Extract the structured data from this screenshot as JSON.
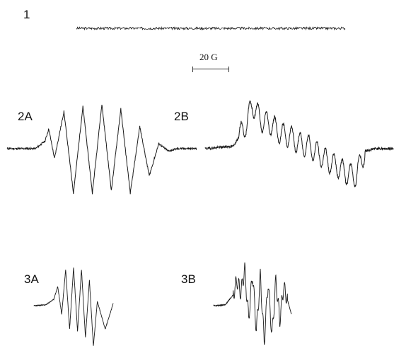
{
  "figure": {
    "scale_bar_label": "20 G"
  },
  "chart_data": [
    {
      "type": "line",
      "panel": "1",
      "title": "1",
      "description": "baseline noise, no resolved signal",
      "x_range": [
        0,
        1
      ],
      "series": [
        {
          "y": [
            0,
            0,
            0,
            0,
            0,
            0,
            0,
            0,
            0,
            0
          ]
        }
      ]
    },
    {
      "type": "line",
      "panel": "2A",
      "title": "2A",
      "x": [
        0,
        0.15,
        0.2,
        0.22,
        0.25,
        0.3,
        0.35,
        0.4,
        0.45,
        0.5,
        0.55,
        0.6,
        0.65,
        0.7,
        0.75,
        0.8,
        0.85,
        0.9,
        1
      ],
      "y": [
        0,
        0,
        0.15,
        0.4,
        -0.2,
        0.75,
        -0.9,
        0.85,
        -0.9,
        0.9,
        -0.85,
        0.8,
        -0.9,
        0.45,
        -0.55,
        0.1,
        -0.05,
        0,
        0
      ]
    },
    {
      "type": "line",
      "panel": "2B",
      "title": "2B",
      "x": [
        0,
        0.15,
        0.22,
        0.25,
        0.3,
        0.35,
        0.4,
        0.45,
        0.5,
        0.55,
        0.6,
        0.65,
        0.7,
        0.75,
        0.8,
        0.85,
        0.9,
        1
      ],
      "y": [
        0,
        0.05,
        0.5,
        0.9,
        0.55,
        0.5,
        0.3,
        0.25,
        0.1,
        0.05,
        -0.1,
        -0.25,
        -0.35,
        -0.5,
        -0.55,
        -0.05,
        0,
        0
      ]
    },
    {
      "type": "line",
      "panel": "3A",
      "title": "3A",
      "x": [
        0,
        0.15,
        0.25,
        0.3,
        0.35,
        0.4,
        0.45,
        0.5,
        0.55,
        0.6,
        0.65,
        0.7,
        0.75,
        0.8,
        0.9,
        1
      ],
      "y": [
        0,
        0.02,
        0.15,
        0.45,
        -0.2,
        0.85,
        -0.55,
        0.9,
        -0.6,
        0.85,
        -0.75,
        0.6,
        -0.95,
        0.1,
        -0.55,
        0.05
      ]
    },
    {
      "type": "line",
      "panel": "3B",
      "title": "3B",
      "x": [
        0,
        0.15,
        0.25,
        0.3,
        0.35,
        0.4,
        0.45,
        0.5,
        0.55,
        0.6,
        0.65,
        0.7,
        0.75,
        0.8,
        0.85,
        0.9,
        1
      ],
      "y": [
        0,
        0.02,
        0.25,
        0.6,
        0.3,
        0.85,
        -0.3,
        0.75,
        -0.6,
        0.7,
        -0.85,
        0.55,
        -0.7,
        0.6,
        -0.35,
        0.45,
        -0.2
      ]
    }
  ]
}
